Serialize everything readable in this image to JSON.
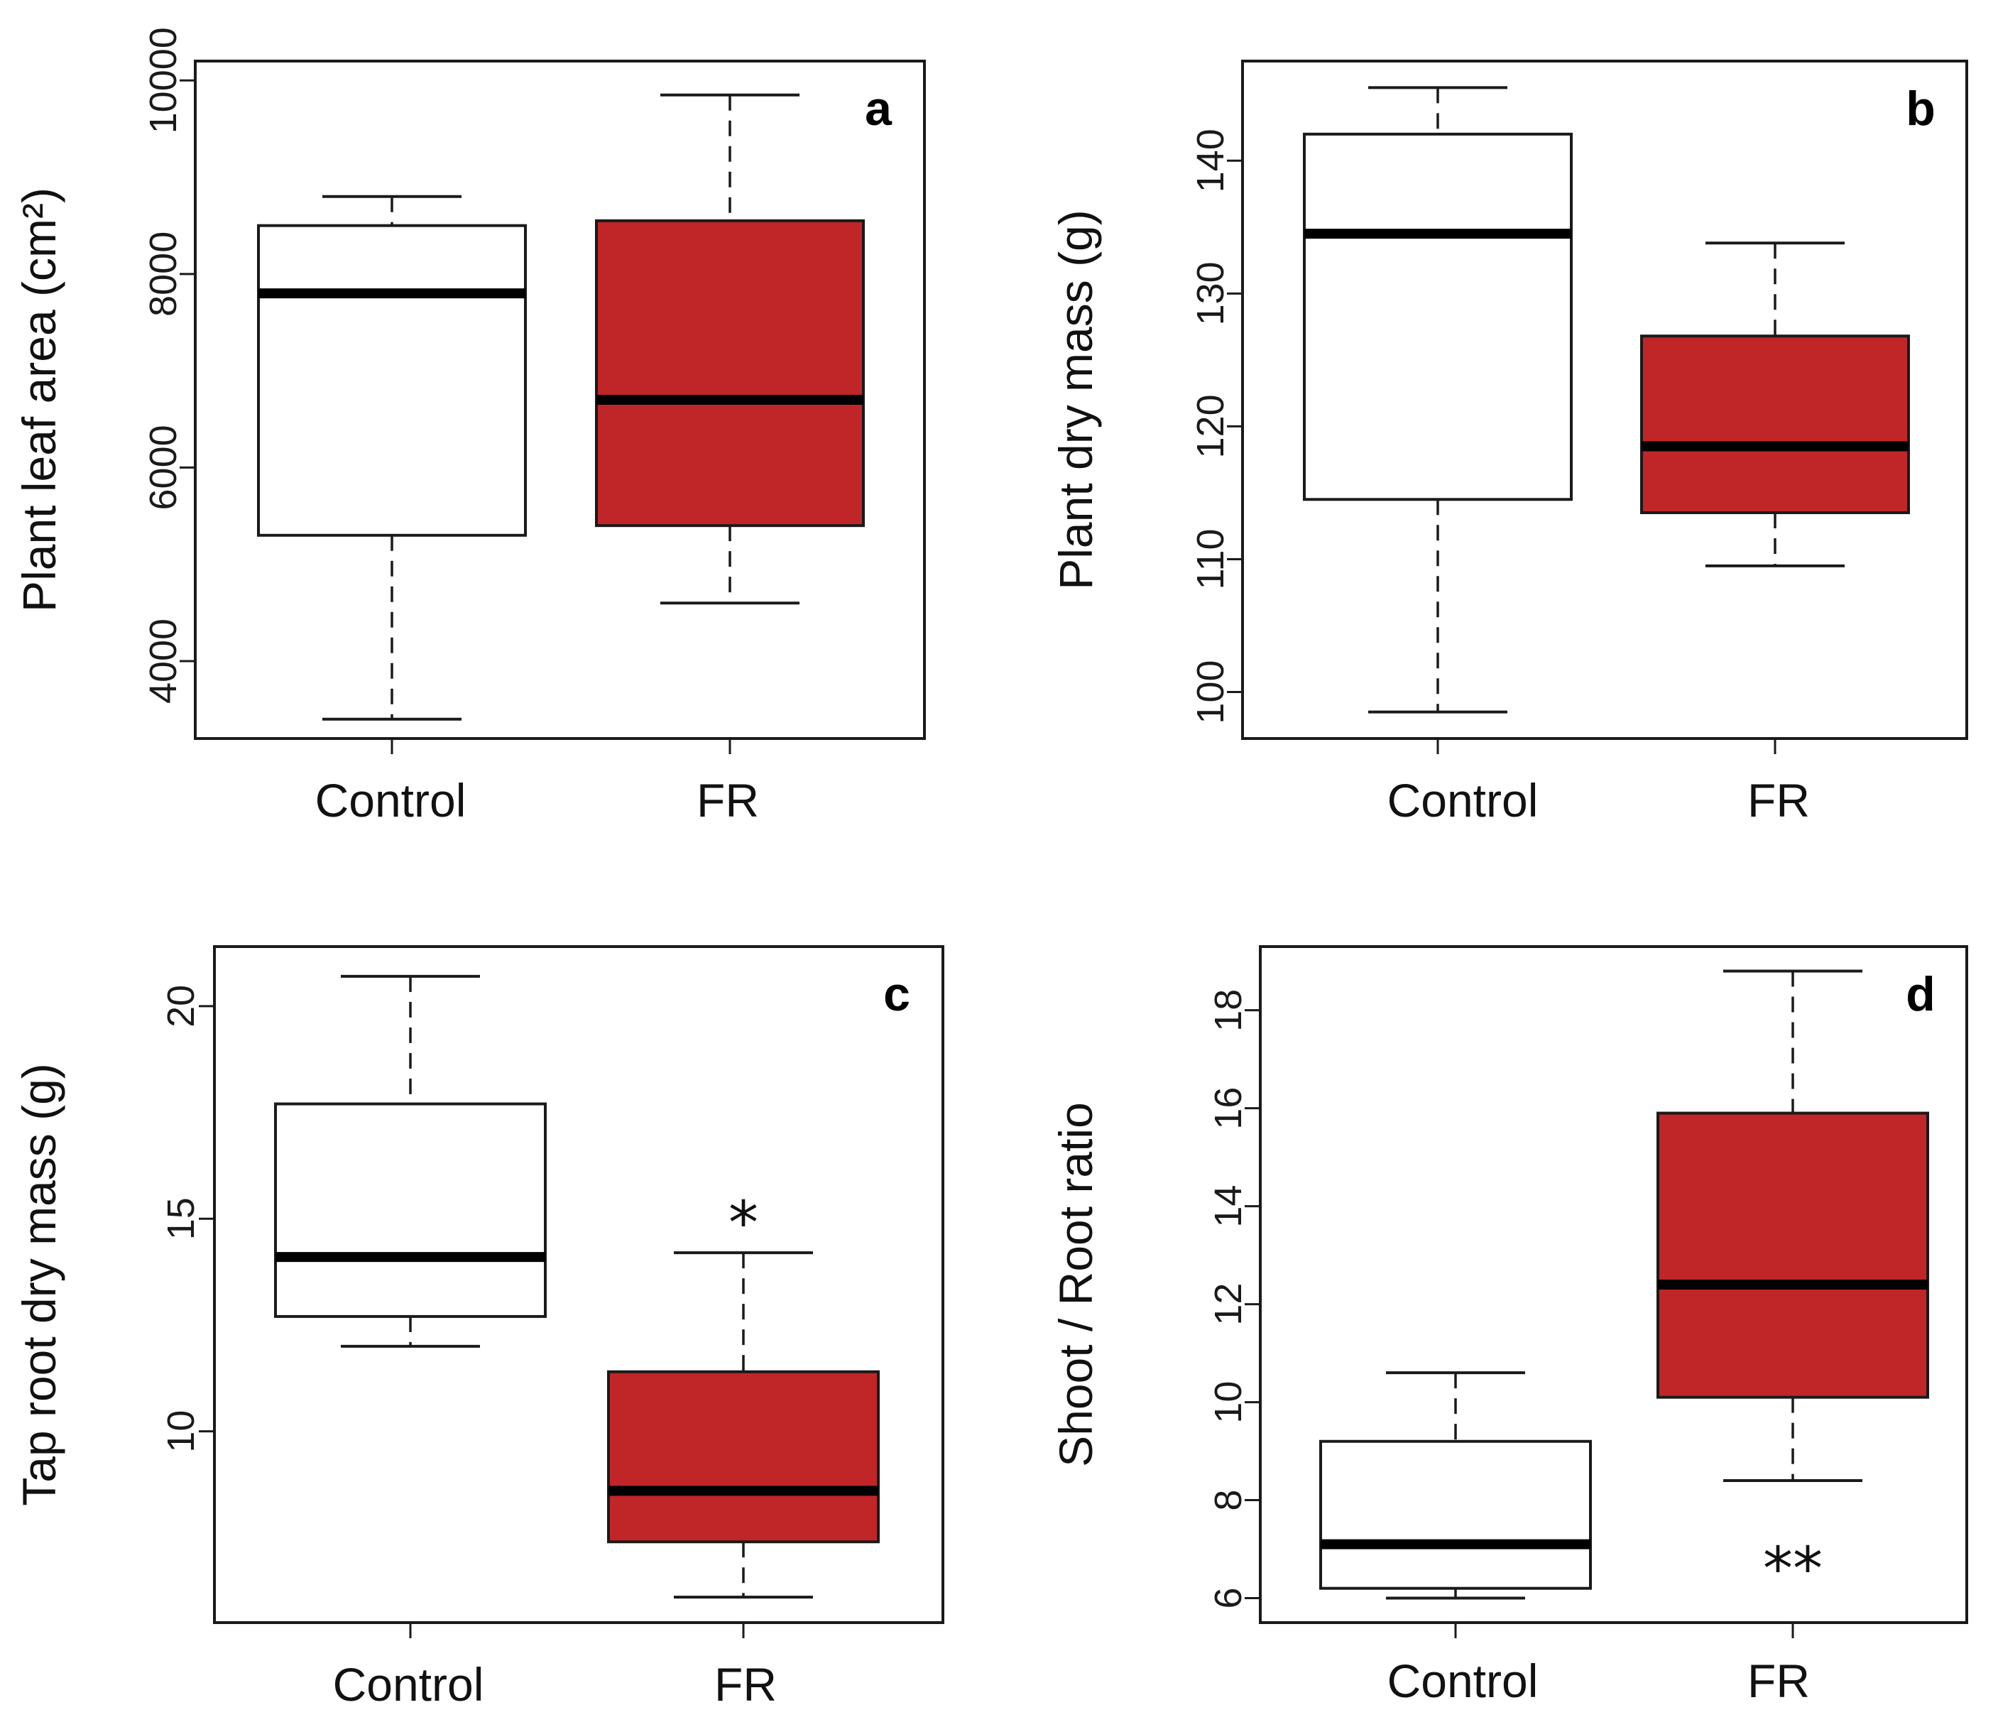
{
  "chart_data": [
    {
      "type": "boxplot",
      "panel_label": "a",
      "ylabel": "Plant leaf area (cm²)",
      "ylim": [
        3200,
        10200
      ],
      "yticks": [
        4000,
        6000,
        8000,
        10000
      ],
      "categories": [
        "Control",
        "FR"
      ],
      "boxes": [
        {
          "category": "Control",
          "min": 3400,
          "q1": 5300,
          "median": 7800,
          "q3": 8500,
          "max": 8800,
          "color": "#ffffff"
        },
        {
          "category": "FR",
          "min": 4600,
          "q1": 5400,
          "median": 6700,
          "q3": 8550,
          "max": 9850,
          "color": "#c02628"
        }
      ],
      "significance": []
    },
    {
      "type": "boxplot",
      "panel_label": "b",
      "ylabel": "Plant dry mass (g)",
      "ylim": [
        96.5,
        147.5
      ],
      "yticks": [
        100,
        110,
        120,
        130,
        140
      ],
      "categories": [
        "Control",
        "FR"
      ],
      "boxes": [
        {
          "category": "Control",
          "min": 98.5,
          "q1": 114.5,
          "median": 134.5,
          "q3": 142,
          "max": 145.5,
          "color": "#ffffff"
        },
        {
          "category": "FR",
          "min": 109.5,
          "q1": 113.5,
          "median": 118.5,
          "q3": 126.8,
          "max": 133.8,
          "color": "#c02628"
        }
      ],
      "significance": []
    },
    {
      "type": "boxplot",
      "panel_label": "c",
      "ylabel": "Tap root dry mass (g)",
      "ylim": [
        5.5,
        21.4
      ],
      "yticks": [
        10,
        15,
        20
      ],
      "categories": [
        "Control",
        "FR"
      ],
      "boxes": [
        {
          "category": "Control",
          "min": 12.0,
          "q1": 12.7,
          "median": 14.1,
          "q3": 17.7,
          "max": 20.7,
          "color": "#ffffff"
        },
        {
          "category": "FR",
          "min": 6.1,
          "q1": 7.4,
          "median": 8.6,
          "q3": 11.4,
          "max": 14.2,
          "color": "#c02628"
        }
      ],
      "significance": [
        {
          "category": "FR",
          "text": "*",
          "y": 14.9
        }
      ]
    },
    {
      "type": "boxplot",
      "panel_label": "d",
      "ylabel": "Shoot / Root ratio",
      "ylim": [
        5.5,
        19.3
      ],
      "yticks": [
        6,
        8,
        10,
        12,
        14,
        16,
        18
      ],
      "categories": [
        "Control",
        "FR"
      ],
      "boxes": [
        {
          "category": "Control",
          "min": 6.0,
          "q1": 6.2,
          "median": 7.1,
          "q3": 9.2,
          "max": 10.6,
          "color": "#ffffff"
        },
        {
          "category": "FR",
          "min": 8.4,
          "q1": 10.1,
          "median": 12.4,
          "q3": 15.9,
          "max": 18.8,
          "color": "#c02628"
        }
      ],
      "significance": [
        {
          "category": "FR",
          "text": "**",
          "y": 6.6
        }
      ]
    }
  ]
}
